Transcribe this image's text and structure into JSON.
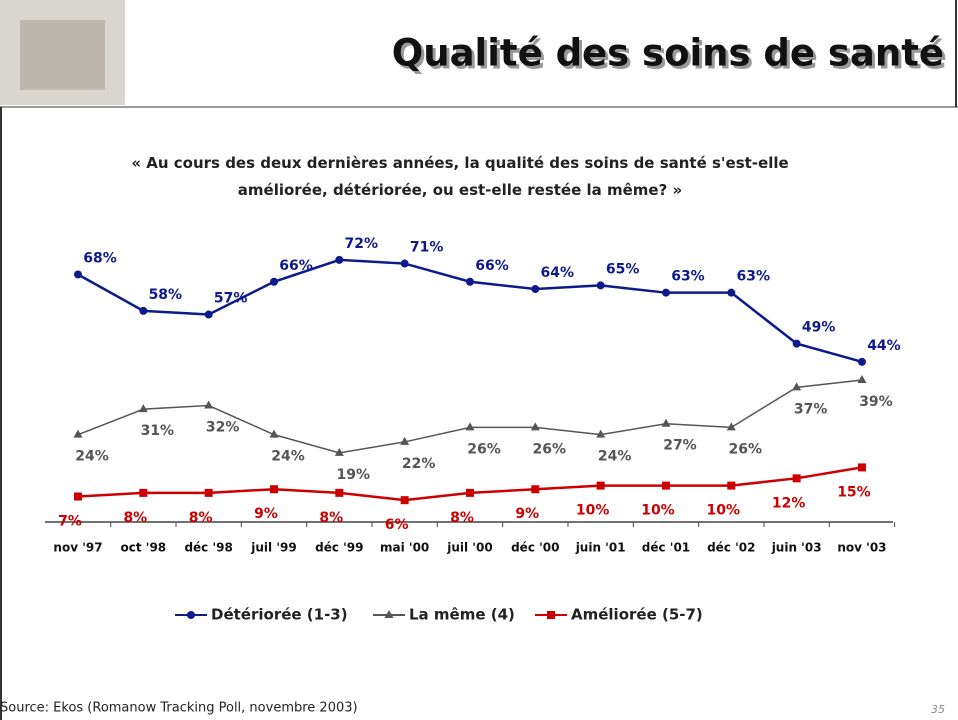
{
  "slide": {
    "title": "Qualité des soins de santé",
    "source": "Source: Ekos (Romanow Tracking Poll, novembre 2003)",
    "page": "35"
  },
  "chart_data": {
    "type": "line",
    "title": "« Au cours des deux dernières années, la qualité des soins de santé s'est-elle améliorée, détériorée, ou est-elle restée la même? »",
    "categories": [
      "nov '97",
      "oct '98",
      "déc '98",
      "juil '99",
      "déc '99",
      "mai '00",
      "juil '00",
      "déc '00",
      "juin '01",
      "déc '01",
      "déc '02",
      "juin '03",
      "nov '03"
    ],
    "series": [
      {
        "name": "Détériorée (1-3)",
        "color": "#0d1a8c",
        "marker": "circle",
        "values": [
          68,
          58,
          57,
          66,
          72,
          71,
          66,
          64,
          65,
          63,
          63,
          49,
          44
        ],
        "value_labels": [
          "68%",
          "58%",
          "57%",
          "66%",
          "72%",
          "71%",
          "66%",
          "64%",
          "65%",
          "63%",
          "63%",
          "49%",
          "44%"
        ]
      },
      {
        "name": "La même (4)",
        "color": "#555555",
        "marker": "triangle",
        "values": [
          24,
          31,
          32,
          24,
          19,
          22,
          26,
          26,
          24,
          27,
          26,
          37,
          39
        ],
        "value_labels": [
          "24%",
          "31%",
          "32%",
          "24%",
          "19%",
          "22%",
          "26%",
          "26%",
          "24%",
          "27%",
          "26%",
          "37%",
          "39%"
        ]
      },
      {
        "name": "Améliorée (5-7)",
        "color": "#cc0000",
        "marker": "square",
        "values": [
          7,
          8,
          8,
          9,
          8,
          6,
          8,
          9,
          10,
          10,
          10,
          12,
          15
        ],
        "value_labels": [
          "7%",
          "8%",
          "8%",
          "9%",
          "8%",
          "6%",
          "8%",
          "9%",
          "10%",
          "10%",
          "10%",
          "12%",
          "15%"
        ]
      }
    ],
    "legend": "bottom"
  }
}
